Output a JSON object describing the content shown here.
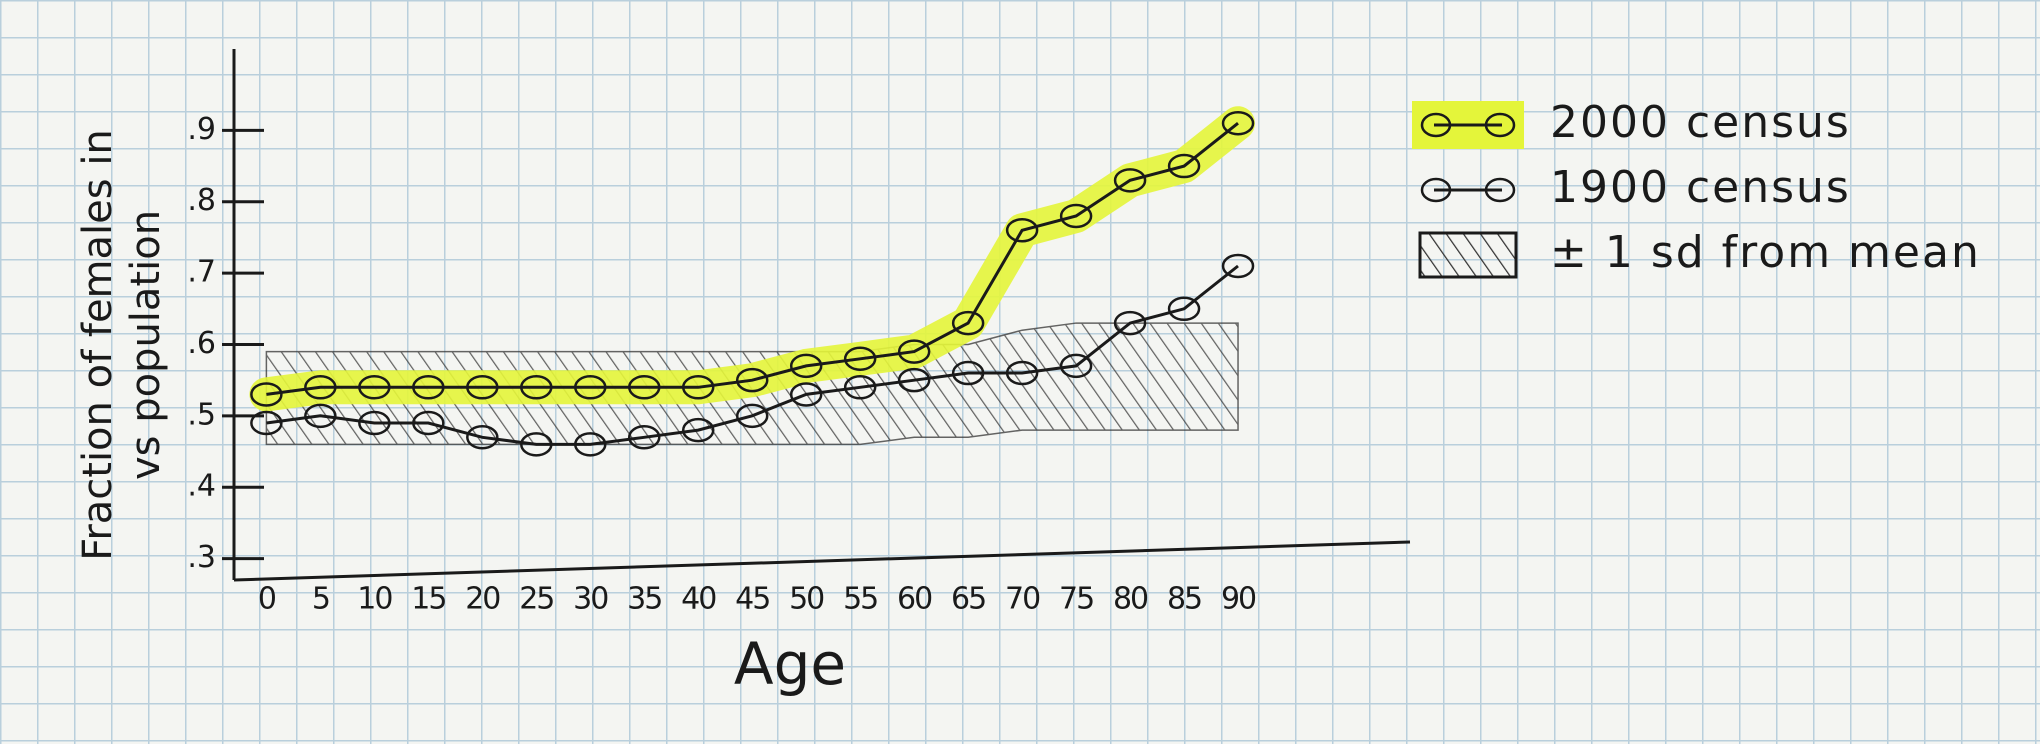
{
  "chart_data": {
    "type": "line",
    "xlabel": "Age",
    "ylabel": [
      "Fraction of females in",
      "vs population"
    ],
    "x": [
      0,
      5,
      10,
      15,
      20,
      25,
      30,
      35,
      40,
      45,
      50,
      55,
      60,
      65,
      70,
      75,
      80,
      85,
      90
    ],
    "xlim": [
      -3,
      100
    ],
    "xticks": [
      0,
      5,
      10,
      15,
      20,
      25,
      30,
      35,
      40,
      45,
      50,
      55,
      60,
      65,
      70,
      75,
      80,
      85,
      90
    ],
    "ylim": [
      0.27,
      1.0
    ],
    "yticks": [
      {
        "value": 0.3,
        "label": ".3"
      },
      {
        "value": 0.4,
        "label": ".4"
      },
      {
        "value": 0.5,
        "label": ".5"
      },
      {
        "value": 0.6,
        "label": ".6"
      },
      {
        "value": 0.7,
        "label": ".7"
      },
      {
        "value": 0.8,
        "label": ".8"
      },
      {
        "value": 0.9,
        "label": ".9"
      }
    ],
    "legend": "right",
    "series": [
      {
        "name": "2000 census",
        "color": "#1a1a1a",
        "highlight": "#e4f53a",
        "values": [
          0.53,
          0.54,
          0.54,
          0.54,
          0.54,
          0.54,
          0.54,
          0.54,
          0.54,
          0.55,
          0.57,
          0.58,
          0.59,
          0.63,
          0.76,
          0.78,
          0.83,
          0.85,
          0.91
        ]
      },
      {
        "name": "1900 census",
        "color": "#1a1a1a",
        "values": [
          0.49,
          0.5,
          0.49,
          0.49,
          0.47,
          0.46,
          0.46,
          0.47,
          0.48,
          0.5,
          0.53,
          0.54,
          0.55,
          0.56,
          0.56,
          0.57,
          0.63,
          0.65,
          0.71
        ]
      },
      {
        "name": "± 1 sd from mean",
        "color": "#333333",
        "lower": [
          0.46,
          0.46,
          0.46,
          0.46,
          0.46,
          0.46,
          0.46,
          0.46,
          0.46,
          0.46,
          0.46,
          0.46,
          0.47,
          0.47,
          0.48,
          0.48,
          0.48,
          0.48,
          0.48
        ],
        "upper": [
          0.59,
          0.59,
          0.59,
          0.59,
          0.59,
          0.59,
          0.59,
          0.59,
          0.59,
          0.59,
          0.59,
          0.59,
          0.6,
          0.6,
          0.62,
          0.63,
          0.63,
          0.63,
          0.63
        ]
      }
    ]
  }
}
